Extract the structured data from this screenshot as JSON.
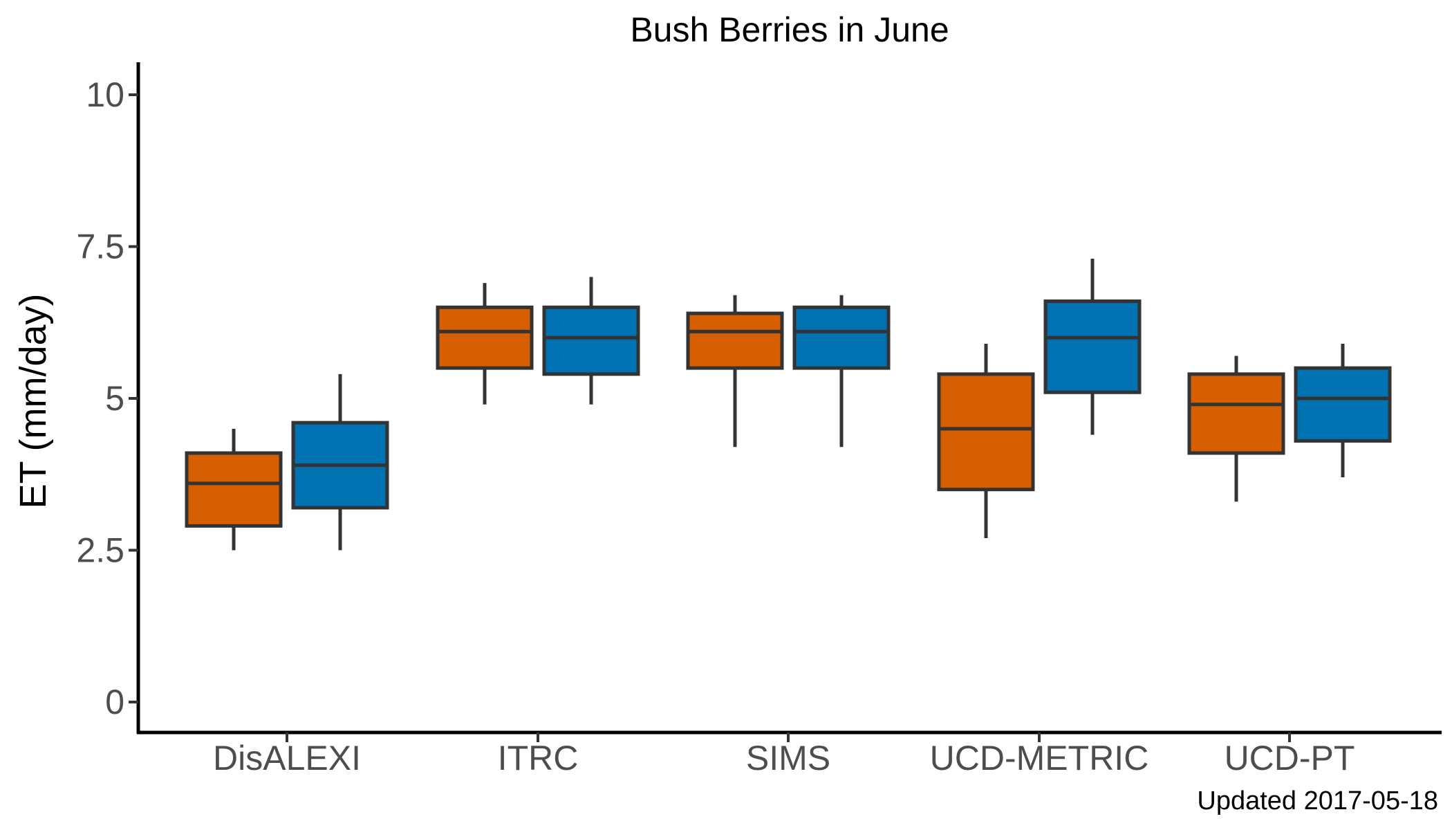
{
  "chart_data": {
    "type": "boxplot",
    "title": "Bush Berries in June",
    "xlabel": "",
    "ylabel": "ET (mm/day)",
    "caption": "Updated  2017-05-18",
    "ylim": [
      -0.5,
      10.5
    ],
    "yticks": [
      0,
      2.5,
      5,
      7.5,
      10
    ],
    "ytick_labels": [
      "0",
      "2.5",
      "5",
      "7.5",
      "10"
    ],
    "grid": false,
    "legend": "none",
    "categories": [
      "DisALEXI",
      "ITRC",
      "SIMS",
      "UCD-METRIC",
      "UCD-PT"
    ],
    "series": [
      {
        "color": "#D55E00",
        "boxes": [
          {
            "min": 2.5,
            "q1": 2.9,
            "median": 3.6,
            "q3": 4.1,
            "max": 4.5
          },
          {
            "min": 4.9,
            "q1": 5.5,
            "median": 6.1,
            "q3": 6.5,
            "max": 6.9
          },
          {
            "min": 4.2,
            "q1": 5.5,
            "median": 6.1,
            "q3": 6.4,
            "max": 6.7
          },
          {
            "min": 2.7,
            "q1": 3.5,
            "median": 4.5,
            "q3": 5.4,
            "max": 5.9
          },
          {
            "min": 3.3,
            "q1": 4.1,
            "median": 4.9,
            "q3": 5.4,
            "max": 5.7
          }
        ]
      },
      {
        "color": "#0072B2",
        "boxes": [
          {
            "min": 2.5,
            "q1": 3.2,
            "median": 3.9,
            "q3": 4.6,
            "max": 5.4
          },
          {
            "min": 4.9,
            "q1": 5.4,
            "median": 6.0,
            "q3": 6.5,
            "max": 7.0
          },
          {
            "min": 4.2,
            "q1": 5.5,
            "median": 6.1,
            "q3": 6.5,
            "max": 6.7
          },
          {
            "min": 4.4,
            "q1": 5.1,
            "median": 6.0,
            "q3": 6.6,
            "max": 7.3
          },
          {
            "min": 3.7,
            "q1": 4.3,
            "median": 5.0,
            "q3": 5.5,
            "max": 5.9
          }
        ]
      }
    ]
  }
}
